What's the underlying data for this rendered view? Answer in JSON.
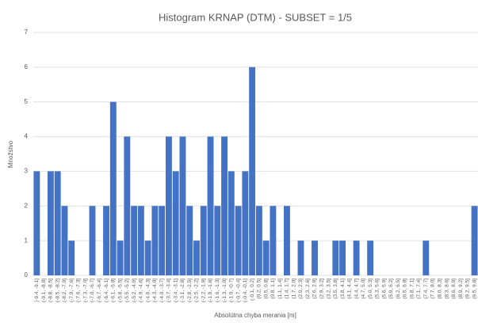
{
  "chart_data": {
    "type": "bar",
    "title": "Histogram KRNAP (DTM) - SUBSET = 1/5",
    "x_label": "Absolútna chyba merania [m]",
    "y_label": "Množstvo",
    "categories": [
      "[-9.4, -9.1]",
      "(-9.1, -8.8]",
      "(-8.8, -8.5]",
      "(-8.5, -8.2]",
      "(-8.2, -7.9]",
      "(-7.9, -7.6]",
      "(-7.6, -7.3]",
      "(-7.3, -7.0]",
      "(-7.0, -6.7]",
      "(-6.7, -6.4]",
      "(-6.4, -6.1]",
      "(-6.1, -5.8]",
      "(-5.8, -5.5]",
      "(-5.5, -5.2]",
      "(-5.2, -4.9]",
      "(-4.9, -4.6]",
      "(-4.6, -4.3]",
      "(-4.3, -4.0]",
      "(-4.0, -3.7]",
      "(-3.7, -3.4]",
      "(-3.4, -3.1]",
      "(-3.1, -2.8]",
      "(-2.8, -2.5]",
      "(-2.5, -2.2]",
      "(-2.2, -1.9]",
      "(-1.9, -1.6]",
      "(-1.6, -1.3]",
      "(-1.3, -1.0]",
      "(-1.0, -0.7]",
      "(-0.7, -0.4]",
      "(-0.4, -0.1]",
      "(-0.1, 0.2]",
      "(0.2, 0.5]",
      "(0.5, 0.8]",
      "(0.8, 1.1]",
      "(1.1, 1.4]",
      "(1.4, 1.7]",
      "(1.7, 2.0]",
      "(2.0, 2.3]",
      "(2.3, 2.6]",
      "(2.6, 2.9]",
      "(2.9, 3.2]",
      "(3.2, 3.5]",
      "(3.5, 3.8]",
      "(3.8, 4.1]",
      "(4.1, 4.4]",
      "(4.4, 4.7]",
      "(4.7, 5.0]",
      "(5.0, 5.3]",
      "(5.3, 5.6]",
      "(5.6, 5.9]",
      "(5.9, 6.2]",
      "(6.2, 6.5]",
      "(6.5, 6.8]",
      "(6.8, 7.1]",
      "(7.1, 7.4]",
      "(7.4, 7.7]",
      "(7.7, 8.0]",
      "(8.0, 8.3]",
      "(8.3, 8.6]",
      "(8.6, 8.9]",
      "(8.9, 9.2]",
      "(9.2, 9.5]",
      "(9.5, 9.8]"
    ],
    "values": [
      3,
      0,
      3,
      3,
      2,
      1,
      0,
      0,
      2,
      0,
      2,
      5,
      1,
      4,
      2,
      2,
      1,
      2,
      2,
      4,
      3,
      4,
      2,
      1,
      2,
      4,
      2,
      4,
      3,
      2,
      3,
      6,
      2,
      1,
      2,
      0,
      2,
      0,
      1,
      0,
      1,
      0,
      0,
      1,
      1,
      0,
      1,
      0,
      1,
      0,
      0,
      0,
      0,
      0,
      0,
      0,
      1,
      0,
      0,
      0,
      0,
      0,
      0,
      2
    ],
    "color": "#4472c4",
    "ylim": [
      0,
      7
    ],
    "yticks": [
      0,
      1,
      2,
      3,
      4,
      5,
      6,
      7
    ],
    "grid": true
  }
}
